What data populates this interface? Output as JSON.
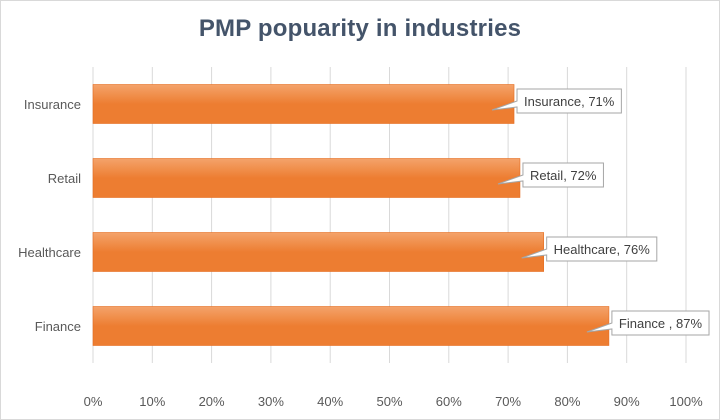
{
  "chart_data": {
    "type": "bar",
    "orientation": "horizontal",
    "title": "PMP popuarity in industries",
    "categories": [
      "Insurance",
      "Retail",
      "Healthcare",
      "Finance"
    ],
    "values": [
      71,
      72,
      76,
      87
    ],
    "data_labels": [
      "Insurance, 71%",
      "Retail, 72%",
      "Healthcare, 76%",
      "Finance , 87%"
    ],
    "xlim": [
      0,
      100
    ],
    "x_ticks": [
      "0%",
      "10%",
      "20%",
      "30%",
      "40%",
      "50%",
      "60%",
      "70%",
      "80%",
      "90%",
      "100%"
    ],
    "xlabel": "",
    "ylabel": "",
    "grid": "vertical",
    "legend": "none",
    "bar_color": "#ed7d31",
    "bar_color_light": "#f4a36b"
  }
}
